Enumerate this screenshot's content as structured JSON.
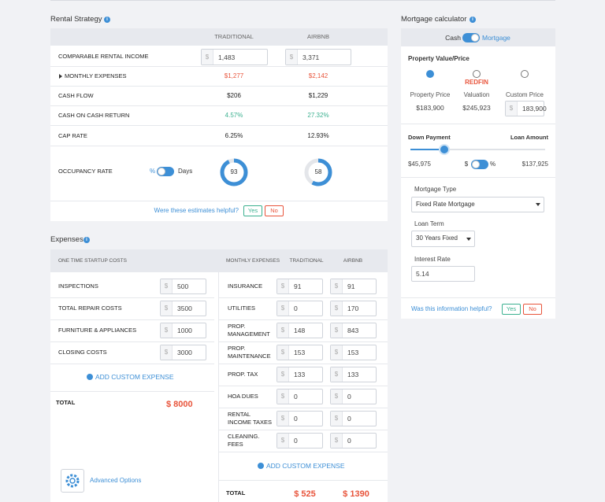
{
  "rental_strategy": {
    "title": "Rental Strategy",
    "columns": [
      "TRADITIONAL",
      "AIRBNB"
    ],
    "rows": [
      {
        "label": "COMPARABLE RENTAL INCOME",
        "currency": "$",
        "traditional": "1,483",
        "airbnb": "3,371"
      },
      {
        "label": "MONTHLY EXPENSES",
        "traditional": "$1,277",
        "airbnb": "$2,142"
      },
      {
        "label": "CASH FLOW",
        "traditional": "$206",
        "airbnb": "$1,229"
      },
      {
        "label": "CASH ON CASH RETURN",
        "traditional": "4.57%",
        "airbnb": "27.32%"
      },
      {
        "label": "CAP RATE",
        "traditional": "6.25%",
        "airbnb": "12.93%"
      }
    ],
    "occupancy": {
      "label": "OCCUPANCY RATE",
      "toggle_left": "%",
      "toggle_right": "Days",
      "traditional": 93,
      "airbnb": 58
    },
    "feedback": {
      "question": "Were these estimates helpful?",
      "yes": "Yes",
      "no": "No"
    }
  },
  "expenses": {
    "title": "Expenses",
    "currency": "$",
    "startup": {
      "header": "ONE TIME STARTUP COSTS",
      "items": [
        {
          "label": "INSPECTIONS",
          "value": "500"
        },
        {
          "label": "TOTAL REPAIR COSTS",
          "value": "3500"
        },
        {
          "label": "FURNITURE & APPLIANCES",
          "value": "1000"
        },
        {
          "label": "CLOSING COSTS",
          "value": "3000"
        }
      ],
      "add": "ADD CUSTOM EXPENSE",
      "total_label": "TOTAL",
      "total": "$ 8000"
    },
    "monthly": {
      "header": "MONTHLY EXPENSES",
      "columns": [
        "TRADITIONAL",
        "AIRBNB"
      ],
      "items": [
        {
          "label": "INSURANCE",
          "traditional": "91",
          "airbnb": "91"
        },
        {
          "label": "UTILITIES",
          "traditional": "0",
          "airbnb": "170"
        },
        {
          "label": "PROP. MANAGEMENT",
          "traditional": "148",
          "airbnb": "843"
        },
        {
          "label": "PROP. MAINTENANCE",
          "traditional": "153",
          "airbnb": "153"
        },
        {
          "label": "PROP. TAX",
          "traditional": "133",
          "airbnb": "133"
        },
        {
          "label": "HOA DUES",
          "traditional": "0",
          "airbnb": "0"
        },
        {
          "label": "RENTAL INCOME TAXES",
          "traditional": "0",
          "airbnb": "0"
        },
        {
          "label": "CLEANING. FEES",
          "traditional": "0",
          "airbnb": "0"
        }
      ],
      "add": "ADD CUSTOM EXPENSE",
      "total_label": "TOTAL",
      "totals": [
        "$ 525",
        "$ 1390"
      ]
    },
    "advanced": "Advanced Options"
  },
  "mortgage": {
    "title": "Mortgage calculator",
    "toggle": [
      "Cash",
      "Mortgage"
    ],
    "property_value": {
      "label": "Property Value/Price",
      "options": [
        {
          "label": "Property Price",
          "value": "$183,900"
        },
        {
          "brand": "REDFIN",
          "label": "Valuation",
          "value": "$245,923"
        },
        {
          "label": "Custom Price",
          "currency": "$",
          "value": "183,900"
        }
      ]
    },
    "down_payment": {
      "label": "Down Payment",
      "loan_label": "Loan Amount",
      "down": "$45,975",
      "toggle": [
        "$",
        "%"
      ],
      "loan": "$137,925"
    },
    "mortgage_type": {
      "label": "Mortgage Type",
      "value": "Fixed Rate Mortgage"
    },
    "loan_term": {
      "label": "Loan Term",
      "value": "30 Years Fixed"
    },
    "interest_rate": {
      "label": "Interest Rate",
      "value": "5.14"
    },
    "feedback": {
      "question": "Was this information helpful?",
      "yes": "Yes",
      "no": "No"
    }
  }
}
